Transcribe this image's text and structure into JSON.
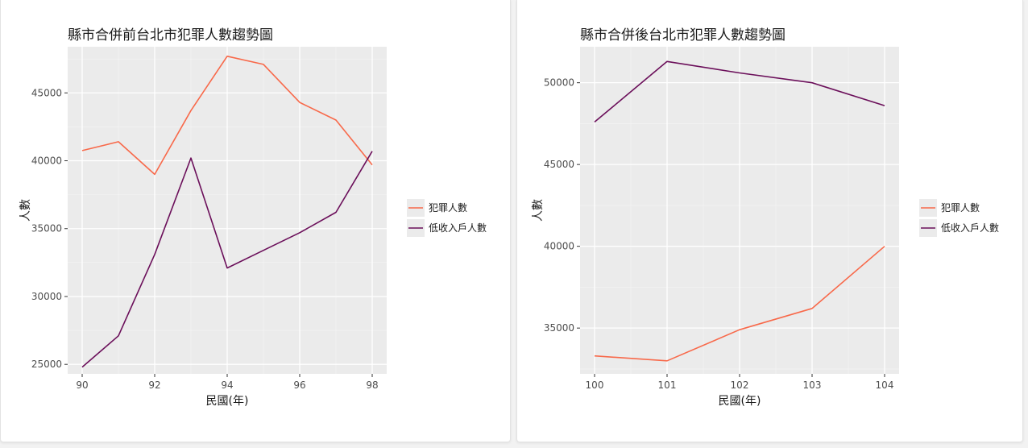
{
  "chart_data": [
    {
      "type": "line",
      "title": "縣市合併前台北市犯罪人數趨勢圖",
      "xlabel": "民國(年)",
      "ylabel": "人數",
      "x": [
        90,
        91,
        92,
        93,
        94,
        95,
        96,
        97,
        98
      ],
      "xticks": [
        90,
        92,
        94,
        96,
        98
      ],
      "xlim": [
        89.6,
        98.4
      ],
      "yticks": [
        25000,
        30000,
        35000,
        40000,
        45000
      ],
      "ylim": [
        24300,
        48400
      ],
      "grid": true,
      "legend_position": "right",
      "series": [
        {
          "name": "犯罪人數",
          "color": "#f8694a",
          "values": [
            40750,
            41400,
            39000,
            43700,
            47700,
            47100,
            44300,
            43000,
            39700
          ]
        },
        {
          "name": "低收入戶人數",
          "color": "#6b0f5a",
          "values": [
            24800,
            27100,
            33100,
            40200,
            32100,
            33400,
            34700,
            36200,
            40700
          ]
        }
      ]
    },
    {
      "type": "line",
      "title": "縣市合併後台北市犯罪人數趨勢圖",
      "xlabel": "民國(年)",
      "ylabel": "人數",
      "x": [
        100,
        101,
        102,
        103,
        104
      ],
      "xticks": [
        100,
        101,
        102,
        103,
        104
      ],
      "xlim": [
        99.8,
        104.2
      ],
      "yticks": [
        35000,
        40000,
        45000,
        50000
      ],
      "ylim": [
        32200,
        52200
      ],
      "grid": true,
      "legend_position": "right",
      "series": [
        {
          "name": "犯罪人數",
          "color": "#f8694a",
          "values": [
            33300,
            33000,
            34900,
            36200,
            40000
          ]
        },
        {
          "name": "低收入戶人數",
          "color": "#6b0f5a",
          "values": [
            47600,
            51300,
            50600,
            50000,
            48600
          ]
        }
      ]
    }
  ]
}
